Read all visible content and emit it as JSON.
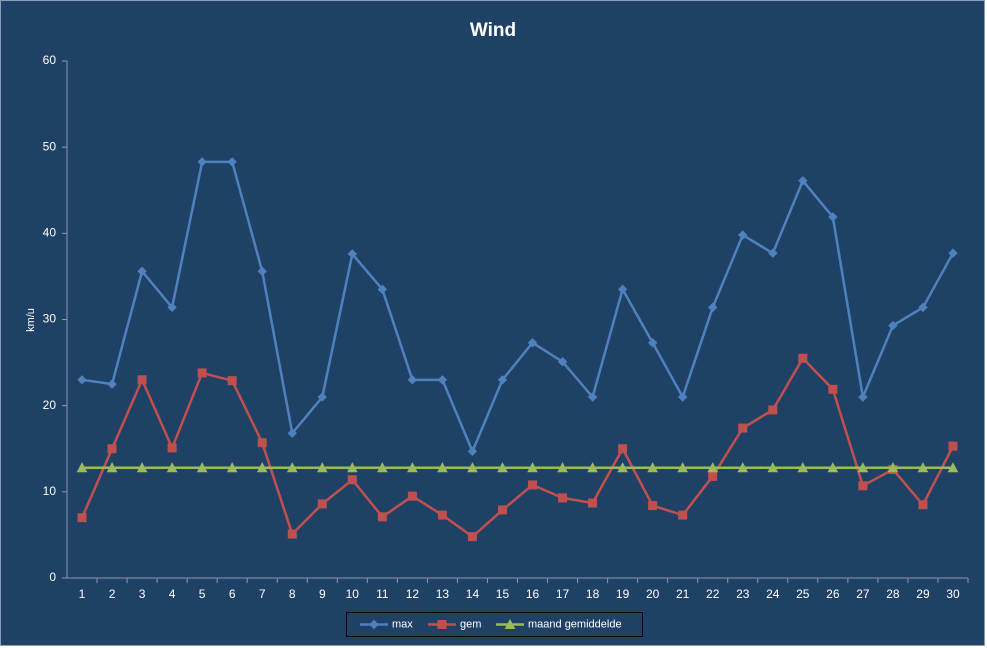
{
  "chart_data": {
    "type": "line",
    "title": "Wind",
    "y_label": "km/u",
    "categories": [
      1,
      2,
      3,
      4,
      5,
      6,
      7,
      8,
      9,
      10,
      11,
      12,
      13,
      14,
      15,
      16,
      17,
      18,
      19,
      20,
      21,
      22,
      23,
      24,
      25,
      26,
      27,
      28,
      29,
      30
    ],
    "series": [
      {
        "name": "max",
        "color": "#4f81bd",
        "marker": "diamond",
        "values": [
          23.0,
          22.5,
          35.6,
          31.4,
          48.3,
          48.3,
          35.6,
          16.8,
          21.0,
          37.6,
          33.5,
          23.0,
          23.0,
          14.7,
          23.0,
          27.3,
          25.1,
          21.0,
          33.5,
          27.3,
          21.0,
          31.4,
          39.8,
          37.7,
          46.1,
          41.9,
          21.0,
          29.3,
          31.4,
          37.7
        ]
      },
      {
        "name": "gem",
        "color": "#c0504d",
        "marker": "square",
        "values": [
          7.0,
          15.0,
          23.0,
          15.1,
          23.8,
          22.9,
          15.7,
          5.1,
          8.6,
          11.4,
          7.1,
          9.5,
          7.3,
          4.8,
          7.9,
          10.8,
          9.3,
          8.7,
          15.0,
          8.4,
          7.3,
          11.8,
          17.4,
          19.5,
          25.5,
          21.9,
          10.7,
          12.6,
          8.5,
          15.3
        ]
      },
      {
        "name": "maand gemiddelde",
        "color": "#9bbb59",
        "marker": "triangle",
        "values": [
          12.8,
          12.8,
          12.8,
          12.8,
          12.8,
          12.8,
          12.8,
          12.8,
          12.8,
          12.8,
          12.8,
          12.8,
          12.8,
          12.8,
          12.8,
          12.8,
          12.8,
          12.8,
          12.8,
          12.8,
          12.8,
          12.8,
          12.8,
          12.8,
          12.8,
          12.8,
          12.8,
          12.8,
          12.8,
          12.8
        ]
      }
    ],
    "ylim": [
      0,
      60
    ],
    "yticks": [
      0,
      10,
      20,
      30,
      40,
      50,
      60
    ],
    "legend": "bottom"
  }
}
